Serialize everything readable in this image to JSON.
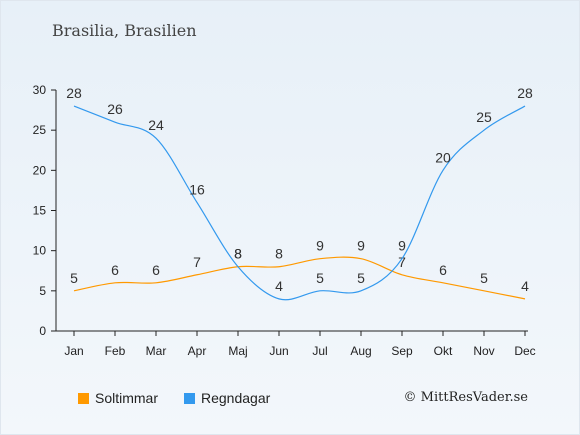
{
  "title": "Brasilia, Brasilien",
  "credit": "© MittResVader.se",
  "chart_data": {
    "type": "line",
    "categories": [
      "Jan",
      "Feb",
      "Mar",
      "Apr",
      "Maj",
      "Jun",
      "Jul",
      "Aug",
      "Sep",
      "Okt",
      "Nov",
      "Dec"
    ],
    "ylim": [
      0,
      30
    ],
    "yticks": [
      0,
      5,
      10,
      15,
      20,
      25,
      30
    ],
    "grid": false,
    "legend_position": "bottom-left",
    "series": [
      {
        "name": "Soltimmar",
        "color": "#ff9900",
        "values": [
          5,
          6,
          6,
          7,
          8,
          8,
          9,
          9,
          7,
          6,
          5,
          4
        ]
      },
      {
        "name": "Regndagar",
        "color": "#3399ee",
        "values": [
          28,
          26,
          24,
          16,
          8,
          4,
          5,
          5,
          9,
          20,
          25,
          28
        ]
      }
    ]
  }
}
